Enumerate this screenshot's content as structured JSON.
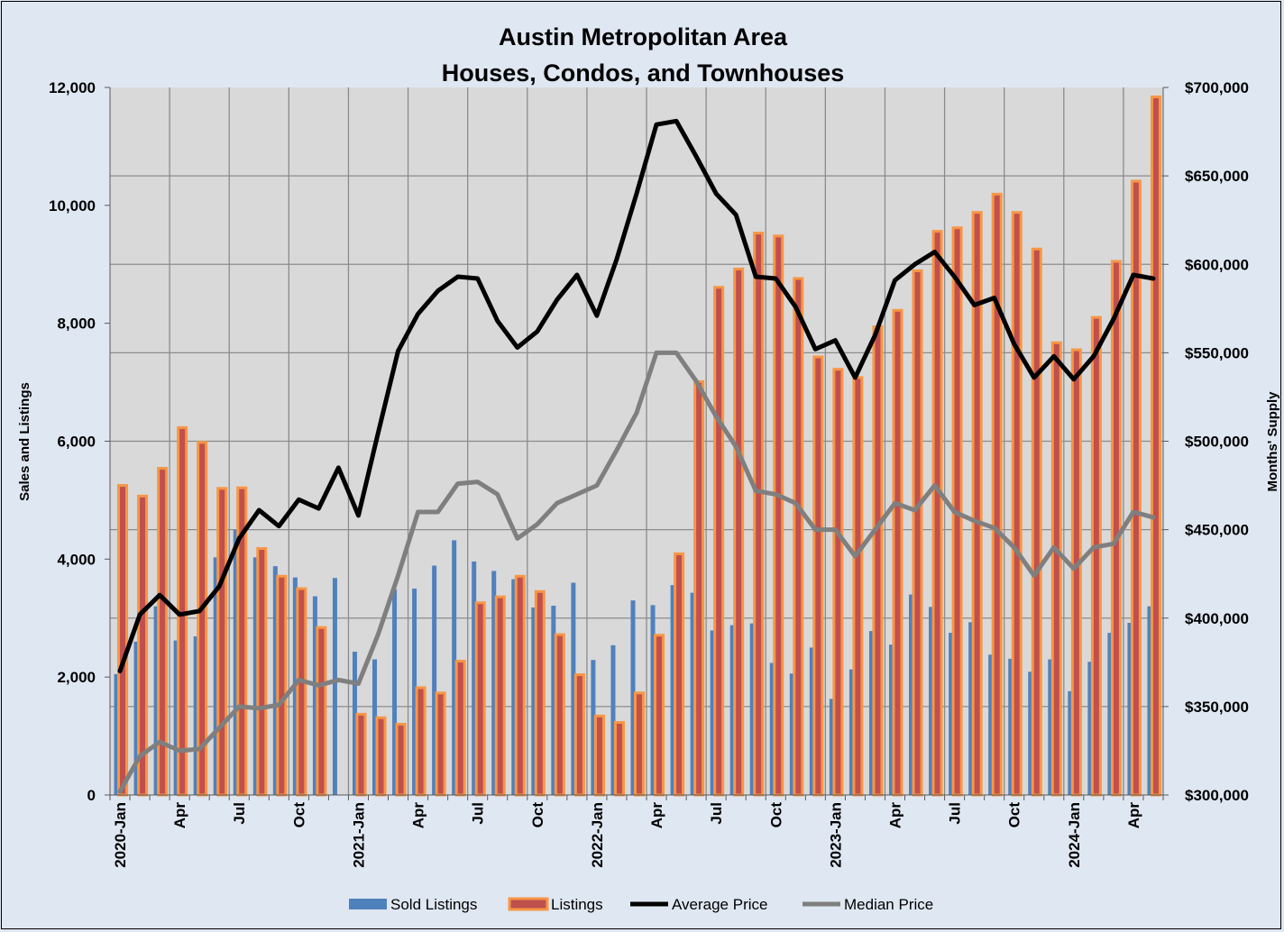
{
  "chart_data": {
    "type": "bar",
    "title": "Austin Metropolitan Area",
    "subtitle": "Houses, Condos, and Townhouses",
    "ylabel": "Sales and Listings",
    "y2label": "Months' Supply",
    "ylim": [
      0,
      12000
    ],
    "y2lim": [
      300000,
      700000
    ],
    "y_ticks": [
      "0",
      "2,000",
      "4,000",
      "6,000",
      "8,000",
      "10,000",
      "12,000"
    ],
    "y2_ticks": [
      "$300,000",
      "$350,000",
      "$400,000",
      "$450,000",
      "$500,000",
      "$550,000",
      "$600,000",
      "$650,000",
      "$700,000"
    ],
    "x_tick_labels": [
      {
        "index": 0,
        "label": "2020-Jan"
      },
      {
        "index": 3,
        "label": "Apr"
      },
      {
        "index": 6,
        "label": "Jul"
      },
      {
        "index": 9,
        "label": "Oct"
      },
      {
        "index": 12,
        "label": "2021-Jan"
      },
      {
        "index": 15,
        "label": "Apr"
      },
      {
        "index": 18,
        "label": "Jul"
      },
      {
        "index": 21,
        "label": "Oct"
      },
      {
        "index": 24,
        "label": "2022-Jan"
      },
      {
        "index": 27,
        "label": "Apr"
      },
      {
        "index": 30,
        "label": "Jul"
      },
      {
        "index": 33,
        "label": "Oct"
      },
      {
        "index": 36,
        "label": "2023-Jan"
      },
      {
        "index": 39,
        "label": "Apr"
      },
      {
        "index": 42,
        "label": "Jul"
      },
      {
        "index": 45,
        "label": "Oct"
      },
      {
        "index": 48,
        "label": "2024-Jan"
      },
      {
        "index": 51,
        "label": "Apr"
      }
    ],
    "grid": true,
    "legend_position": "bottom",
    "colors": {
      "sold": "#4f81bd",
      "listings": "#c0504d",
      "listings_outline": "#f79646",
      "average": "#000000",
      "median": "#7f7f7f",
      "plot_bg": "#d9d9d9",
      "grid": "#8c8c8c"
    },
    "series": [
      {
        "name": "Sold Listings",
        "axis": "left",
        "values": [
          2050,
          2600,
          3200,
          2620,
          2690,
          4030,
          4500,
          4030,
          3880,
          3690,
          3370,
          3680,
          2430,
          2300,
          3490,
          3500,
          3890,
          4320,
          3960,
          3800,
          3660,
          3180,
          3210,
          3600,
          2290,
          2540,
          3300,
          3220,
          3560,
          3430,
          2790,
          2880,
          2910,
          2240,
          2060,
          2500,
          1630,
          2130,
          2780,
          2550,
          3400,
          3190,
          2750,
          2930,
          2380,
          2310,
          2090,
          2300,
          1760,
          2260,
          2750,
          2920,
          3200
        ]
      },
      {
        "name": "Listings",
        "axis": "left",
        "values": [
          5250,
          5070,
          5540,
          6230,
          5980,
          5200,
          5210,
          4180,
          3710,
          3500,
          2840,
          null,
          1370,
          1310,
          1200,
          1820,
          1730,
          2270,
          3260,
          3360,
          3710,
          3450,
          2720,
          2040,
          1340,
          1230,
          1730,
          2710,
          4090,
          7010,
          8610,
          8920,
          9530,
          9480,
          8760,
          7430,
          7220,
          7080,
          7940,
          8220,
          8890,
          9560,
          9620,
          9880,
          10190,
          9880,
          9260,
          7670,
          7550,
          8100,
          9050,
          10410,
          11840
        ]
      },
      {
        "name": "Average Price",
        "axis": "right",
        "values": [
          370000,
          402000,
          413000,
          402000,
          404000,
          418000,
          445000,
          461000,
          452000,
          467000,
          462000,
          485000,
          458000,
          505000,
          551000,
          572000,
          585000,
          593000,
          592000,
          568000,
          553000,
          562000,
          580000,
          594000,
          571000,
          603000,
          640000,
          679000,
          681000,
          661000,
          640000,
          628000,
          593000,
          592000,
          576000,
          552000,
          557000,
          536000,
          560000,
          591000,
          600000,
          607000,
          593000,
          577000,
          581000,
          555000,
          536000,
          548000,
          535000,
          548000,
          569000,
          594000,
          592000
        ]
      },
      {
        "name": "Median Price",
        "axis": "right",
        "values": [
          302000,
          322000,
          330000,
          325000,
          326000,
          338000,
          350000,
          349000,
          351000,
          365000,
          362000,
          365000,
          363000,
          391000,
          424000,
          460000,
          460000,
          476000,
          477000,
          470000,
          445000,
          453000,
          465000,
          470000,
          475000,
          495000,
          516000,
          550000,
          550000,
          534000,
          514000,
          497000,
          472000,
          470000,
          465000,
          450000,
          450000,
          435000,
          450000,
          465000,
          461000,
          475000,
          460000,
          455000,
          451000,
          440000,
          424000,
          440000,
          428000,
          440000,
          442000,
          460000,
          457000
        ]
      }
    ]
  }
}
